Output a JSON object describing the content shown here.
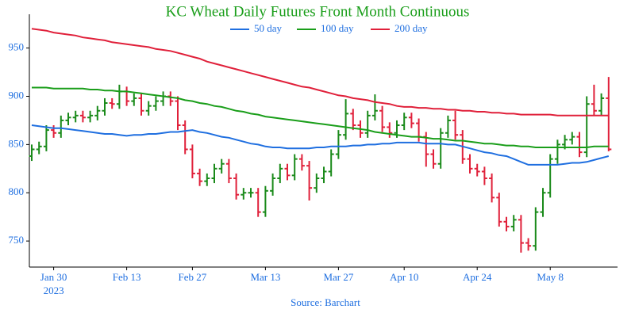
{
  "chart_data": {
    "type": "ohlc",
    "title": "KC Wheat Daily Futures Front Month Continuous",
    "title_color": "#1a9e1a",
    "source": "Source: Barchart",
    "x": [
      "2023-01-25",
      "2023-01-26",
      "2023-01-27",
      "2023-01-30",
      "2023-01-31",
      "2023-02-01",
      "2023-02-02",
      "2023-02-03",
      "2023-02-06",
      "2023-02-07",
      "2023-02-08",
      "2023-02-09",
      "2023-02-10",
      "2023-02-13",
      "2023-02-14",
      "2023-02-15",
      "2023-02-16",
      "2023-02-17",
      "2023-02-21",
      "2023-02-22",
      "2023-02-23",
      "2023-02-24",
      "2023-02-27",
      "2023-02-28",
      "2023-03-01",
      "2023-03-02",
      "2023-03-03",
      "2023-03-06",
      "2023-03-07",
      "2023-03-08",
      "2023-03-09",
      "2023-03-10",
      "2023-03-13",
      "2023-03-14",
      "2023-03-15",
      "2023-03-16",
      "2023-03-17",
      "2023-03-20",
      "2023-03-21",
      "2023-03-22",
      "2023-03-23",
      "2023-03-24",
      "2023-03-27",
      "2023-03-28",
      "2023-03-29",
      "2023-03-30",
      "2023-03-31",
      "2023-04-03",
      "2023-04-04",
      "2023-04-05",
      "2023-04-06",
      "2023-04-10",
      "2023-04-11",
      "2023-04-12",
      "2023-04-13",
      "2023-04-14",
      "2023-04-17",
      "2023-04-18",
      "2023-04-19",
      "2023-04-20",
      "2023-04-21",
      "2023-04-24",
      "2023-04-25",
      "2023-04-26",
      "2023-04-27",
      "2023-04-28",
      "2023-05-01",
      "2023-05-02",
      "2023-05-03",
      "2023-05-04",
      "2023-05-05",
      "2023-05-08",
      "2023-05-09",
      "2023-05-10",
      "2023-05-11",
      "2023-05-12",
      "2023-05-15",
      "2023-05-16",
      "2023-05-17",
      "2023-05-18"
    ],
    "open": [
      838,
      845,
      848,
      865,
      862,
      875,
      878,
      880,
      878,
      880,
      885,
      893,
      892,
      905,
      895,
      898,
      885,
      890,
      895,
      900,
      895,
      870,
      845,
      820,
      812,
      815,
      825,
      830,
      815,
      798,
      800,
      800,
      780,
      802,
      815,
      825,
      818,
      835,
      828,
      805,
      815,
      822,
      840,
      860,
      882,
      870,
      862,
      880,
      885,
      868,
      862,
      870,
      878,
      872,
      858,
      840,
      830,
      862,
      875,
      860,
      835,
      825,
      822,
      815,
      795,
      770,
      765,
      772,
      748,
      745,
      780,
      800,
      835,
      850,
      855,
      858,
      842,
      892,
      885,
      898
    ],
    "high": [
      850,
      853,
      870,
      870,
      880,
      883,
      885,
      885,
      885,
      890,
      898,
      898,
      912,
      910,
      903,
      903,
      895,
      900,
      905,
      905,
      900,
      875,
      850,
      825,
      820,
      830,
      835,
      835,
      820,
      805,
      805,
      805,
      807,
      820,
      830,
      830,
      840,
      840,
      833,
      820,
      827,
      845,
      865,
      897,
      887,
      875,
      885,
      902,
      890,
      873,
      875,
      883,
      883,
      877,
      863,
      845,
      867,
      880,
      885,
      865,
      840,
      830,
      827,
      820,
      800,
      775,
      777,
      777,
      753,
      785,
      805,
      840,
      855,
      860,
      863,
      863,
      900,
      912,
      903,
      920
    ],
    "low": [
      833,
      840,
      843,
      857,
      857,
      870,
      873,
      873,
      873,
      875,
      880,
      887,
      887,
      890,
      890,
      880,
      880,
      885,
      890,
      890,
      865,
      840,
      815,
      807,
      807,
      810,
      820,
      810,
      793,
      793,
      795,
      775,
      775,
      797,
      810,
      813,
      813,
      823,
      792,
      800,
      810,
      817,
      835,
      855,
      865,
      857,
      857,
      875,
      863,
      857,
      857,
      865,
      867,
      853,
      827,
      825,
      825,
      857,
      855,
      830,
      820,
      817,
      808,
      790,
      765,
      760,
      760,
      738,
      740,
      740,
      775,
      795,
      830,
      845,
      850,
      837,
      837,
      880,
      880,
      843
    ],
    "close": [
      845,
      848,
      865,
      862,
      875,
      878,
      880,
      878,
      880,
      885,
      893,
      892,
      905,
      895,
      898,
      885,
      890,
      895,
      900,
      895,
      870,
      845,
      820,
      812,
      815,
      825,
      830,
      815,
      798,
      800,
      800,
      780,
      802,
      815,
      825,
      818,
      835,
      828,
      805,
      815,
      822,
      840,
      860,
      882,
      870,
      862,
      880,
      885,
      868,
      862,
      870,
      878,
      872,
      858,
      840,
      830,
      862,
      875,
      860,
      835,
      825,
      822,
      815,
      795,
      770,
      765,
      772,
      748,
      745,
      780,
      800,
      835,
      850,
      855,
      858,
      842,
      892,
      885,
      898,
      845
    ],
    "up_color": "#1a8a1a",
    "down_color": "#e0203a",
    "series": [
      {
        "name": "50 day",
        "color": "#1f6fe0",
        "values": [
          870,
          869,
          868,
          867,
          867,
          866,
          865,
          864,
          863,
          862,
          861,
          861,
          860,
          859,
          860,
          860,
          861,
          861,
          862,
          863,
          863,
          864,
          865,
          863,
          862,
          860,
          858,
          857,
          855,
          853,
          851,
          850,
          848,
          847,
          847,
          846,
          846,
          846,
          846,
          847,
          847,
          848,
          848,
          848,
          849,
          849,
          850,
          850,
          851,
          851,
          852,
          852,
          852,
          852,
          851,
          851,
          851,
          850,
          850,
          848,
          846,
          844,
          842,
          841,
          839,
          838,
          835,
          832,
          829,
          829,
          829,
          829,
          829,
          830,
          831,
          831,
          832,
          834,
          836,
          838
        ]
      },
      {
        "name": "100 day",
        "color": "#1a9e1a",
        "values": [
          909,
          909,
          909,
          908,
          908,
          908,
          908,
          908,
          907,
          907,
          906,
          906,
          905,
          905,
          904,
          903,
          902,
          901,
          900,
          899,
          898,
          896,
          895,
          893,
          892,
          890,
          889,
          887,
          885,
          884,
          882,
          881,
          879,
          878,
          877,
          876,
          875,
          874,
          873,
          872,
          871,
          870,
          869,
          868,
          867,
          866,
          865,
          863,
          862,
          861,
          860,
          859,
          858,
          858,
          857,
          856,
          856,
          855,
          854,
          854,
          853,
          852,
          851,
          851,
          850,
          849,
          849,
          848,
          848,
          847,
          847,
          847,
          847,
          847,
          847,
          847,
          847,
          848,
          848,
          848
        ]
      },
      {
        "name": "200 day",
        "color": "#e0203a",
        "values": [
          970,
          969,
          968,
          966,
          965,
          964,
          963,
          961,
          960,
          959,
          958,
          956,
          955,
          954,
          953,
          952,
          951,
          949,
          948,
          947,
          945,
          943,
          941,
          939,
          936,
          934,
          932,
          930,
          928,
          926,
          924,
          922,
          920,
          918,
          916,
          914,
          912,
          910,
          909,
          907,
          905,
          903,
          901,
          900,
          898,
          897,
          896,
          894,
          893,
          892,
          890,
          889,
          889,
          888,
          888,
          887,
          887,
          886,
          886,
          885,
          885,
          884,
          884,
          883,
          883,
          882,
          882,
          881,
          881,
          881,
          881,
          881,
          880,
          880,
          880,
          880,
          880,
          880,
          880,
          880
        ]
      }
    ],
    "ylim": [
      723,
      985
    ],
    "yticks": [
      750,
      800,
      850,
      900,
      950
    ],
    "xticks": [
      {
        "value": "2023-01-30",
        "label": "Jan 30"
      },
      {
        "value": "2023-02-13",
        "label": "Feb 13"
      },
      {
        "value": "2023-02-27",
        "label": "Feb 27"
      },
      {
        "value": "2023-03-13",
        "label": "Mar 13"
      },
      {
        "value": "2023-03-27",
        "label": "Mar 27"
      },
      {
        "value": "2023-04-10",
        "label": "Apr 10"
      },
      {
        "value": "2023-04-24",
        "label": "Apr 24"
      },
      {
        "value": "2023-05-08",
        "label": "May 8"
      }
    ],
    "x_axis_year": "2023",
    "tick_label_color": "#1f6fe0",
    "grid": false
  }
}
